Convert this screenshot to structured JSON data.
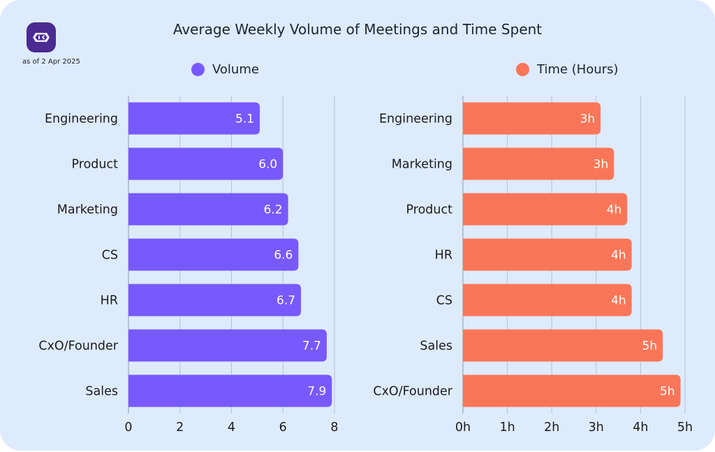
{
  "header": {
    "as_of": "as of 2 Apr 2025",
    "logo_icon": "robot-face-icon"
  },
  "colors": {
    "background": "#deebfd",
    "volume": "#7859fd",
    "time": "#fb7658",
    "logo": "#4b2a91",
    "gridline": "#b6c2d6"
  },
  "chart_data": [
    {
      "type": "bar",
      "orientation": "horizontal",
      "title": "Average Weekly Volume of Meetings and Time Spent",
      "legend": "Volume",
      "legend_position": "top",
      "categories": [
        "Engineering",
        "Product",
        "Marketing",
        "CS",
        "HR",
        "CxO/Founder",
        "Sales"
      ],
      "values": [
        5.1,
        6.0,
        6.2,
        6.6,
        6.7,
        7.7,
        7.9
      ],
      "data_labels": [
        "5.1",
        "6.0",
        "6.2",
        "6.6",
        "6.7",
        "7.7",
        "7.9"
      ],
      "xlim": [
        0,
        8
      ],
      "xticks": [
        0,
        2,
        4,
        6,
        8
      ],
      "xtick_labels": [
        "0",
        "2",
        "4",
        "6",
        "8"
      ],
      "xlabel": "",
      "ylabel": "",
      "grid": true
    },
    {
      "type": "bar",
      "orientation": "horizontal",
      "title": "Average Weekly Volume of Meetings and Time Spent",
      "legend": "Time (Hours)",
      "legend_position": "top",
      "categories": [
        "Engineering",
        "Marketing",
        "Product",
        "HR",
        "CS",
        "Sales",
        "CxO/Founder"
      ],
      "values": [
        3.1,
        3.4,
        3.7,
        3.8,
        3.8,
        4.5,
        4.9
      ],
      "data_labels": [
        "3h",
        "3h",
        "4h",
        "4h",
        "4h",
        "5h",
        "5h"
      ],
      "xlim": [
        0,
        5
      ],
      "xticks": [
        0,
        1,
        2,
        3,
        4,
        5
      ],
      "xtick_labels": [
        "0h",
        "1h",
        "2h",
        "3h",
        "4h",
        "5h"
      ],
      "xlabel": "",
      "ylabel": "",
      "grid": true
    }
  ]
}
